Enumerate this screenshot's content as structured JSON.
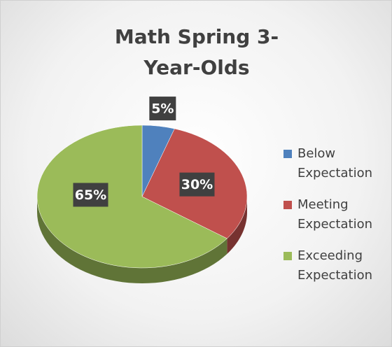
{
  "chart_data": {
    "type": "pie",
    "title": "Math Spring 3-Year-Olds",
    "categories": [
      "Below Expectation",
      "Meeting Expectation",
      "Exceeding Expectation"
    ],
    "values": [
      5,
      30,
      65
    ],
    "value_labels": [
      "5%",
      "30%",
      "65%"
    ],
    "colors": [
      "#4f81bd",
      "#c0504d",
      "#9bbb59"
    ],
    "legend": "right"
  }
}
